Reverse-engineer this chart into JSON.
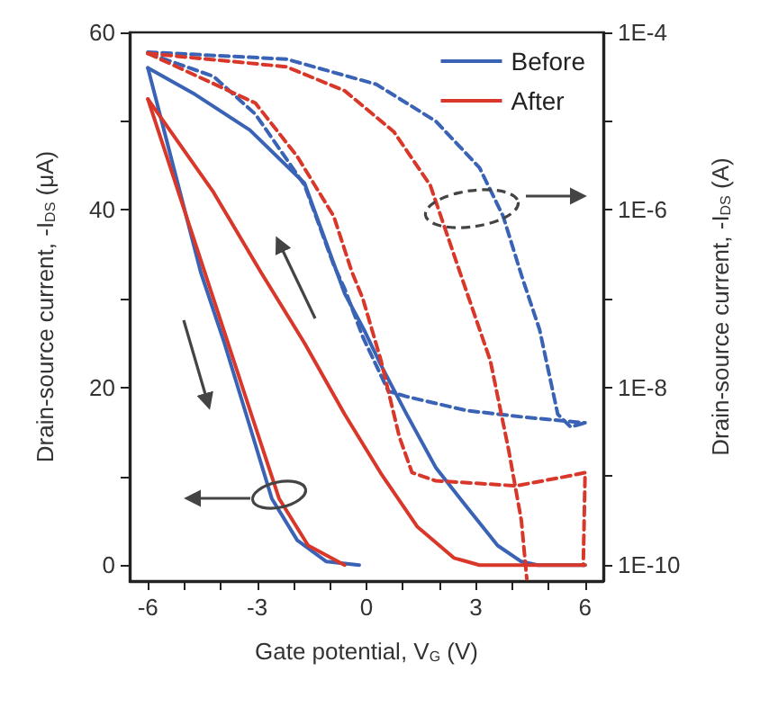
{
  "chart_data": {
    "type": "line",
    "xlabel": "Gate potential, V$_{G}$ (V)",
    "ylabel": "Drain-source current, -I$_{DS}$ (μA)",
    "y2label": "Drain-source current, -I$_{DS}$ (A)",
    "xlim": [
      -6.5,
      6.5
    ],
    "xticks": [
      -6,
      {
        "value": -5,
        "label": null
      },
      {
        "value": -4,
        "label": null
      },
      -3,
      {
        "value": -2,
        "label": null
      },
      {
        "value": -1,
        "label": null
      },
      0,
      {
        "value": 1,
        "label": null
      },
      {
        "value": 2,
        "label": null
      },
      3,
      {
        "value": 4,
        "label": null
      },
      {
        "value": 5,
        "label": null
      },
      6
    ],
    "ylim": [
      -1.8,
      60
    ],
    "yticks": [
      0,
      {
        "value": 10,
        "label": null
      },
      20,
      {
        "value": 30,
        "label": null
      },
      40,
      {
        "value": 50,
        "label": null
      },
      60
    ],
    "y2lim": [
      6.6e-11,
      0.0001
    ],
    "y2ticks": [
      {
        "value": 1e-10,
        "label": "1E-10"
      },
      {
        "value": 1e-09,
        "label": null
      },
      {
        "value": 1e-08,
        "label": "1E-8"
      },
      {
        "value": 1e-07,
        "label": null
      },
      {
        "value": 1e-06,
        "label": "1E-6"
      },
      {
        "value": 1e-05,
        "label": null
      },
      {
        "value": 0.0001,
        "label": "1E-4"
      }
    ],
    "log": "y2",
    "grid": false,
    "legend": "top right",
    "marker": "none",
    "series": [
      {
        "name": "Before",
        "color": "#3a63b6",
        "line_style": "solid",
        "x": [
          -6,
          -4.55,
          -3.9,
          -3.2,
          -2.6,
          -1.9,
          -1.1,
          -0.2
        ],
        "values": [
          56,
          33,
          25,
          15.6,
          7.5,
          2.8,
          0.4,
          0
        ]
      },
      {
        "color": "#3a63b6",
        "line_style": "solid",
        "x": [
          -6,
          -4.7,
          -3.2,
          -1.7,
          -0.6,
          -0.08,
          0.4,
          1.1,
          1.9,
          2.8,
          3.6,
          4.25,
          4.7,
          6
        ],
        "values": [
          56,
          53,
          49,
          43,
          30.6,
          26.6,
          22.5,
          17,
          11,
          6.3,
          2.2,
          0.4,
          0,
          0
        ]
      },
      {
        "name": "After",
        "color": "#d8372a",
        "line_style": "solid",
        "x": [
          -6,
          -4.2,
          -3.05,
          -2.4,
          -1.6,
          -0.6
        ],
        "values": [
          52.5,
          30,
          15.6,
          7.5,
          2.2,
          0
        ]
      },
      {
        "color": "#d8372a",
        "line_style": "solid",
        "x": [
          -6,
          -4.2,
          -2.9,
          -1.7,
          -0.6,
          0.4,
          1.4,
          2.4,
          3.1,
          6
        ],
        "values": [
          52.5,
          42,
          33,
          25,
          17,
          10.3,
          4.3,
          0.8,
          0,
          0
        ]
      },
      {
        "color": "#3a63b6",
        "line_style": "dashed",
        "axis": "y2",
        "x": [
          -6,
          -2.2,
          0.27,
          1.9,
          3.1,
          3.75,
          4.3,
          4.75,
          5.25,
          5.6,
          6
        ],
        "values": [
          6e-05,
          5e-05,
          2.6e-05,
          1e-05,
          3e-06,
          8.5e-07,
          1.6e-07,
          4.5e-08,
          5e-09,
          3.6e-09,
          4e-09
        ]
      },
      {
        "color": "#3a63b6",
        "line_style": "dashed",
        "axis": "y2",
        "x": [
          -6,
          -5.55,
          -4.2,
          -3.05,
          -1.7,
          -0.9,
          -0.6,
          -0.1,
          0.6,
          1.1,
          2.75,
          4.4,
          6
        ],
        "values": [
          5.8e-05,
          5e-05,
          3.2e-05,
          1.2e-05,
          1.9e-06,
          2.4e-07,
          1.3e-07,
          3.7e-08,
          9.1e-09,
          7.9e-09,
          5.5e-09,
          4.6e-09,
          4e-09
        ]
      },
      {
        "color": "#d8372a",
        "line_style": "dashed",
        "axis": "y2",
        "x": [
          -6,
          -2.2,
          -0.6,
          0.75,
          1.75,
          2.6,
          3.4,
          3.9,
          4.25,
          4.4
        ],
        "values": [
          5.8e-05,
          4.1e-05,
          2.2e-05,
          7.6e-06,
          1.9e-06,
          1.8e-07,
          2e-08,
          2e-09,
          3.2e-10,
          7e-11
        ]
      },
      {
        "color": "#d8372a",
        "line_style": "dashed",
        "axis": "y2",
        "x": [
          -6,
          -3.05,
          -1.9,
          -0.9,
          -0.4,
          -0.1,
          0.4,
          0.9,
          1.25,
          1.9,
          4.1,
          5.4,
          6,
          5.95
        ],
        "values": [
          5.8e-05,
          1.6e-05,
          4e-06,
          8.5e-07,
          2e-07,
          1e-07,
          2e-08,
          2.8e-09,
          1.1e-09,
          8.9e-10,
          7.8e-10,
          9.8e-10,
          1.1e-09,
          1e-10
        ]
      }
    ]
  }
}
